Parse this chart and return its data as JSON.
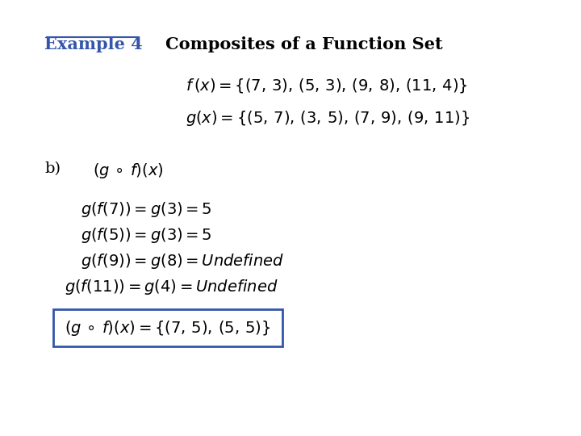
{
  "title_example": "Example 4",
  "title_main": "Composites of a Function Set",
  "f_def": "f\\,(x) = \\{(7,\\,3),\\,(5,\\,3),\\,(9,\\,8),\\,(11,\\,4)\\}",
  "g_def": "g(x) = \\{(5,\\,7),\\,(3,\\,5),\\,(7,\\,9),\\,(9,\\,11)\\}",
  "b_label": "b)",
  "composite_label": "(g\\,\\circ\\, f)(x)",
  "line1": "g(f(7)) = g(3) = 5",
  "line2": "g(f(5)) = g(3) = 5",
  "line3": "g(f(9)) = g(8) = Undefined",
  "line4": "g(f(11)) = g(4) = Undefined",
  "box_result": "(g\\,\\circ\\, f)(x) = \\{(7,\\,5),\\,(5,\\,5)\\}",
  "bg_color": "#ffffff",
  "text_color": "#000000",
  "title_color": "#000000",
  "box_color": "#3355aa",
  "underline_color": "#3355aa"
}
